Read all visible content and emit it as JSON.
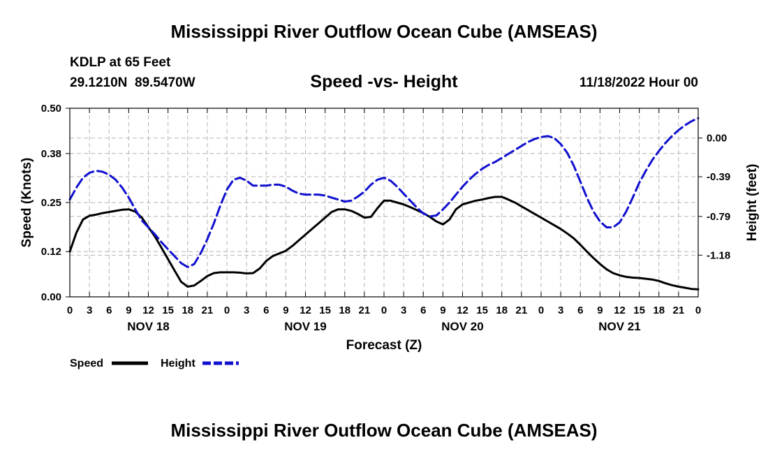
{
  "chart_data": {
    "type": "line",
    "title": "Mississippi River Outflow Ocean Cube (AMSEAS)",
    "footer_title": "Mississippi River Outflow Ocean Cube (AMSEAS)",
    "subtitle": "Speed -vs- Height",
    "station": "KDLP at 65 Feet",
    "location": "29.1210N  89.5470W",
    "run": "11/18/2022 Hour 00",
    "xlabel": "Forecast (Z)",
    "ylabel": "Speed (Knots)",
    "y2label": "Height (feet)",
    "xlim": [
      0,
      96
    ],
    "ylim": [
      0,
      0.5
    ],
    "y2lim": [
      -1.6,
      0.3
    ],
    "x_tick_labels": [
      "0",
      "3",
      "6",
      "9",
      "12",
      "15",
      "18",
      "21",
      "0",
      "3",
      "6",
      "9",
      "12",
      "15",
      "18",
      "21",
      "0",
      "3",
      "6",
      "9",
      "12",
      "15",
      "18",
      "21",
      "0",
      "3",
      "6",
      "9",
      "12",
      "15",
      "18",
      "21",
      "0"
    ],
    "day_labels": [
      "NOV 18",
      "NOV 19",
      "NOV 20",
      "NOV 21"
    ],
    "y_ticks": [
      "0.00",
      "0.12",
      "0.25",
      "0.38",
      "0.50"
    ],
    "y2_ticks": [
      "0.00",
      "-0.39",
      "-0.79",
      "-1.18"
    ],
    "legend": [
      {
        "name": "Speed",
        "color": "#000000",
        "dash": "solid"
      },
      {
        "name": "Height",
        "color": "#1010d0",
        "dash": "dashed"
      }
    ],
    "series": [
      {
        "name": "Speed",
        "axis": "left",
        "color": "#000000",
        "x": [
          0,
          1,
          2,
          3,
          4,
          5,
          6,
          7,
          8,
          9,
          10,
          11,
          12,
          13,
          14,
          15,
          16,
          17,
          18,
          19,
          20,
          21,
          22,
          23,
          24,
          25,
          26,
          27,
          28,
          29,
          30,
          31,
          32,
          33,
          34,
          35,
          36,
          37,
          38,
          39,
          40,
          41,
          42,
          43,
          44,
          45,
          46,
          47,
          48,
          49,
          50,
          51,
          52,
          53,
          54,
          55,
          56,
          57,
          58,
          59,
          60,
          61,
          62,
          63,
          64,
          65,
          66,
          67,
          68,
          69,
          70,
          71,
          72,
          73,
          74,
          75,
          76,
          77,
          78,
          79,
          80,
          81,
          82,
          83,
          84,
          85,
          86,
          87,
          88,
          89,
          90,
          91,
          92,
          93,
          94,
          95,
          96
        ],
        "values": [
          0.12,
          0.17,
          0.205,
          0.215,
          0.218,
          0.222,
          0.225,
          0.228,
          0.231,
          0.232,
          0.226,
          0.21,
          0.185,
          0.16,
          0.13,
          0.1,
          0.07,
          0.04,
          0.027,
          0.03,
          0.042,
          0.055,
          0.063,
          0.065,
          0.065,
          0.065,
          0.064,
          0.062,
          0.063,
          0.075,
          0.095,
          0.108,
          0.115,
          0.122,
          0.135,
          0.15,
          0.165,
          0.18,
          0.195,
          0.21,
          0.225,
          0.232,
          0.232,
          0.228,
          0.22,
          0.21,
          0.212,
          0.235,
          0.255,
          0.255,
          0.25,
          0.245,
          0.238,
          0.23,
          0.222,
          0.212,
          0.2,
          0.192,
          0.205,
          0.232,
          0.245,
          0.25,
          0.255,
          0.258,
          0.262,
          0.265,
          0.265,
          0.258,
          0.25,
          0.24,
          0.23,
          0.22,
          0.21,
          0.2,
          0.19,
          0.18,
          0.168,
          0.155,
          0.138,
          0.12,
          0.103,
          0.087,
          0.073,
          0.063,
          0.057,
          0.053,
          0.051,
          0.05,
          0.048,
          0.046,
          0.042,
          0.036,
          0.031,
          0.027,
          0.024,
          0.021,
          0.02
        ]
      },
      {
        "name": "Height",
        "axis": "right",
        "color": "#1010d0",
        "x": [
          0,
          1,
          2,
          3,
          4,
          5,
          6,
          7,
          8,
          9,
          10,
          11,
          12,
          13,
          14,
          15,
          16,
          17,
          18,
          19,
          20,
          21,
          22,
          23,
          24,
          25,
          26,
          27,
          28,
          29,
          30,
          31,
          32,
          33,
          34,
          35,
          36,
          37,
          38,
          39,
          40,
          41,
          42,
          43,
          44,
          45,
          46,
          47,
          48,
          49,
          50,
          51,
          52,
          53,
          54,
          55,
          56,
          57,
          58,
          59,
          60,
          61,
          62,
          63,
          64,
          65,
          66,
          67,
          68,
          69,
          70,
          71,
          72,
          73,
          74,
          75,
          76,
          77,
          78,
          79,
          80,
          81,
          82,
          83,
          84,
          85,
          86,
          87,
          88,
          89,
          90,
          91,
          92,
          93,
          94,
          95,
          96
        ],
        "values": [
          -0.62,
          -0.5,
          -0.4,
          -0.35,
          -0.33,
          -0.34,
          -0.37,
          -0.42,
          -0.5,
          -0.6,
          -0.72,
          -0.83,
          -0.9,
          -0.97,
          -1.05,
          -1.12,
          -1.19,
          -1.26,
          -1.3,
          -1.27,
          -1.16,
          -1.02,
          -0.86,
          -0.68,
          -0.52,
          -0.42,
          -0.4,
          -0.43,
          -0.48,
          -0.48,
          -0.48,
          -0.47,
          -0.47,
          -0.49,
          -0.53,
          -0.56,
          -0.57,
          -0.57,
          -0.57,
          -0.58,
          -0.6,
          -0.62,
          -0.64,
          -0.63,
          -0.59,
          -0.54,
          -0.47,
          -0.42,
          -0.4,
          -0.43,
          -0.49,
          -0.56,
          -0.63,
          -0.7,
          -0.76,
          -0.79,
          -0.78,
          -0.72,
          -0.65,
          -0.57,
          -0.49,
          -0.42,
          -0.36,
          -0.31,
          -0.27,
          -0.24,
          -0.2,
          -0.16,
          -0.12,
          -0.08,
          -0.04,
          -0.01,
          0.01,
          0.02,
          0.0,
          -0.06,
          -0.15,
          -0.28,
          -0.44,
          -0.6,
          -0.74,
          -0.84,
          -0.9,
          -0.9,
          -0.85,
          -0.74,
          -0.6,
          -0.45,
          -0.33,
          -0.22,
          -0.13,
          -0.05,
          0.02,
          0.08,
          0.13,
          0.17,
          0.2
        ]
      }
    ]
  }
}
